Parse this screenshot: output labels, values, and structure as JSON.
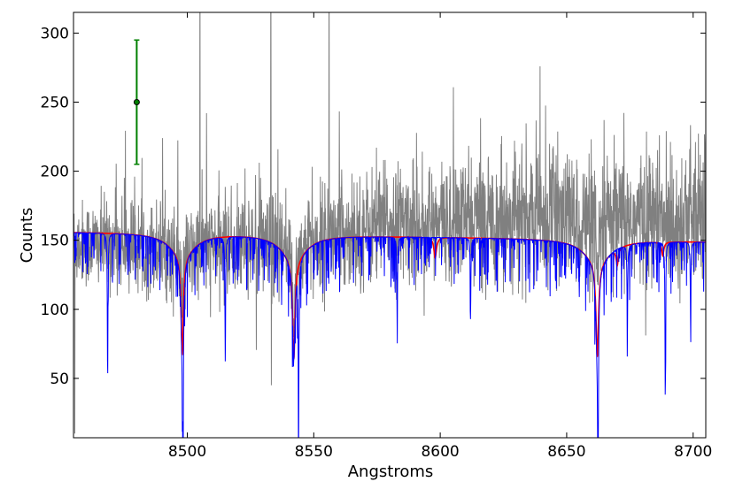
{
  "chart_data": {
    "type": "line",
    "title": "",
    "xlabel": "Angstroms",
    "ylabel": "Counts",
    "xlim": [
      8455,
      8705
    ],
    "ylim": [
      7,
      315
    ],
    "xticks": [
      8500,
      8550,
      8600,
      8650,
      8700
    ],
    "yticks": [
      50,
      100,
      150,
      200,
      250,
      300
    ],
    "xtick_labels": [
      "8500",
      "8550",
      "8600",
      "8650",
      "8700"
    ],
    "ytick_labels": [
      "50",
      "100",
      "150",
      "200",
      "250",
      "300"
    ],
    "grid": false,
    "legend": "none",
    "series": [
      {
        "color": "#808080",
        "style": "noisy observed spectrum",
        "continuum": [
          [
            8455,
            148
          ],
          [
            8540,
            147
          ],
          [
            8580,
            162
          ],
          [
            8640,
            168
          ],
          [
            8705,
            165
          ]
        ],
        "noise_sigma": 22,
        "spikes": [
          [
            8505,
            400
          ],
          [
            8533,
            400
          ],
          [
            8556,
            400
          ],
          [
            8533.2,
            45
          ],
          [
            8455.5,
            10
          ]
        ]
      },
      {
        "color": "#ff0000",
        "style": "smooth model",
        "continuum": [
          [
            8455,
            156
          ],
          [
            8520,
            155
          ],
          [
            8580,
            153
          ],
          [
            8650,
            151
          ],
          [
            8705,
            149
          ]
        ],
        "lines": [
          {
            "center": 8498.0,
            "depth": 72,
            "width": 0.55,
            "wing": 0.18
          },
          {
            "center": 8542.1,
            "depth": 72,
            "width": 0.6,
            "wing": 0.2
          },
          {
            "center": 8662.1,
            "depth": 68,
            "width": 0.6,
            "wing": 0.2
          },
          {
            "center": 8598,
            "depth": 15,
            "width": 0.6,
            "wing": 0
          },
          {
            "center": 8670,
            "depth": 12,
            "width": 0.5,
            "wing": 0
          },
          {
            "center": 8688,
            "depth": 10,
            "width": 0.5,
            "wing": 0
          }
        ]
      },
      {
        "color": "#0000ff",
        "style": "high-resolution model",
        "continuum": [
          [
            8455,
            156
          ],
          [
            8520,
            155
          ],
          [
            8580,
            153
          ],
          [
            8650,
            151
          ],
          [
            8705,
            149
          ]
        ],
        "lines": [
          {
            "center": 8498.0,
            "depth": 72,
            "width": 0.55,
            "wing": 0.18
          },
          {
            "center": 8542.1,
            "depth": 72,
            "width": 0.6,
            "wing": 0.2
          },
          {
            "center": 8662.1,
            "depth": 68,
            "width": 0.6,
            "wing": 0.2
          }
        ],
        "sharp_lines": [
          [
            8468.5,
            110
          ],
          [
            8498.3,
            130
          ],
          [
            8515,
            90
          ],
          [
            8544,
            138
          ],
          [
            8583,
            70
          ],
          [
            8612,
            60
          ],
          [
            8662.4,
            130
          ],
          [
            8674,
            70
          ],
          [
            8689,
            120
          ],
          [
            8699,
            60
          ]
        ]
      }
    ],
    "error_bar": {
      "x": 8480,
      "y": 250,
      "yerr": 45,
      "color": "#008000"
    }
  }
}
